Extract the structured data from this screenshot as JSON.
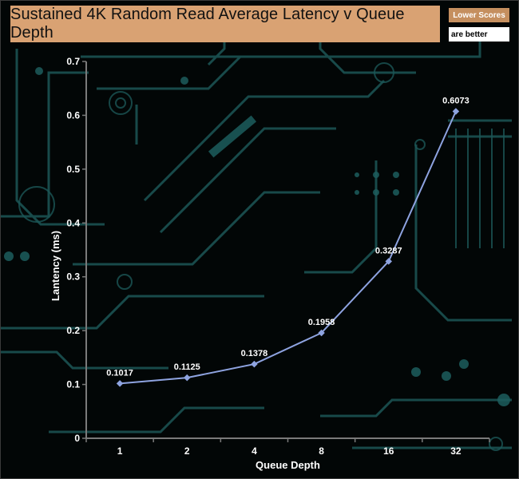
{
  "header": {
    "lower_scores": "Lower Scores",
    "are_better": "are better"
  },
  "colors": {
    "title_bg": "#d9a273",
    "series_line": "#8ea3e0",
    "axis": "#7a7a7a",
    "circuit": "#1f5c5c"
  },
  "chart_data": {
    "type": "line",
    "title": "Sustained 4K Random Read Average Latency v Queue Depth",
    "xlabel": "Queue Depth",
    "ylabel": "Lantency (ms)",
    "categories": [
      "1",
      "2",
      "4",
      "8",
      "16",
      "32"
    ],
    "series": [
      {
        "values": [
          0.1017,
          0.1125,
          0.1378,
          0.1958,
          0.3287,
          0.6073
        ]
      }
    ],
    "data_labels": [
      "0.1017",
      "0.1125",
      "0.1378",
      "0.1958",
      "0.3287",
      "0.6073"
    ],
    "y_ticks": [
      "0",
      "0.1",
      "0.2",
      "0.3",
      "0.4",
      "0.5",
      "0.6",
      "0.7"
    ],
    "ylim": [
      0,
      0.7
    ],
    "grid": false,
    "legend": "none"
  }
}
